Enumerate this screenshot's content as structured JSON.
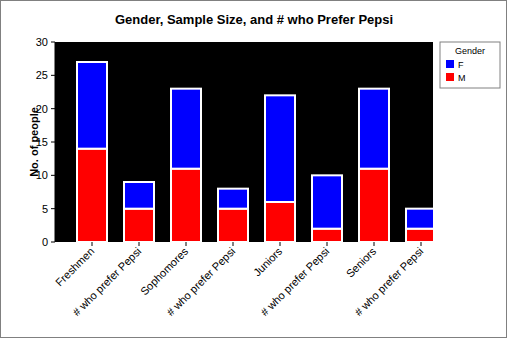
{
  "chart_data": {
    "type": "bar",
    "stacked": true,
    "title": "Gender, Sample Size, and # who Prefer Pepsi",
    "y_label": "No. of people",
    "categories": [
      "Freshmen",
      "# who prefer Pepsi",
      "Sophomores",
      "# who prefer Pepsi",
      "Juniors",
      "# who prefer Pepsi",
      "Seniors",
      "# who prefer Pepsi"
    ],
    "series": [
      {
        "name": "M",
        "color": "#ff0000",
        "values": [
          14,
          5,
          11,
          5,
          6,
          2,
          11,
          2
        ]
      },
      {
        "name": "F",
        "color": "#0000ff",
        "values": [
          13,
          4,
          12,
          3,
          16,
          8,
          12,
          3
        ]
      }
    ],
    "legend_title": "Gender",
    "legend": "right",
    "ylim": [
      0,
      30
    ],
    "yticks": [
      0,
      5,
      10,
      15,
      20,
      25,
      30
    ],
    "grid": false
  }
}
